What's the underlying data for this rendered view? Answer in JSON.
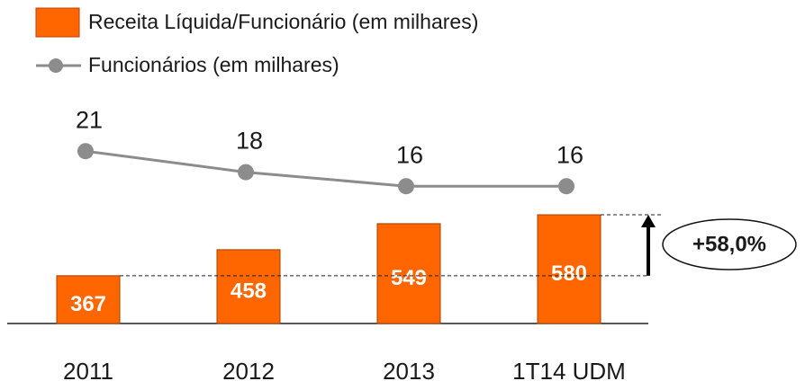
{
  "chart_data": {
    "type": "bar",
    "categories": [
      "2011",
      "2012",
      "2013",
      "1T14 UDM"
    ],
    "series": [
      {
        "name": "Receita Líquida/Funcionário (em milhares)",
        "type": "bar",
        "color": "#ff6600",
        "values": [
          367,
          458,
          549,
          580
        ]
      },
      {
        "name": "Funcionários (em milhares)",
        "type": "line",
        "axis": "y2",
        "color": "#8c8c8c",
        "values": [
          21,
          18,
          16,
          16
        ]
      }
    ],
    "ylim": [
      200,
      800
    ],
    "y2lim": [
      0,
      30
    ],
    "annotation": "+58,0%"
  }
}
